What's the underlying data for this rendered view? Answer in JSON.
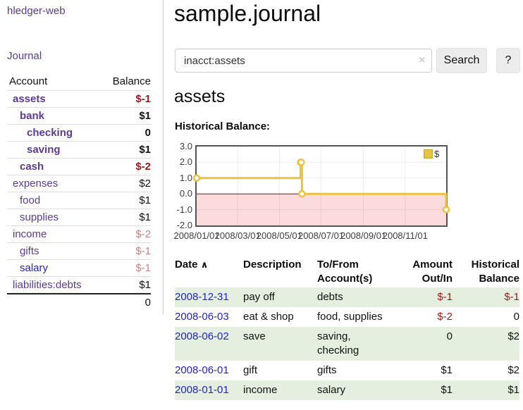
{
  "colors": {
    "link_purple": "#5c3a96",
    "link_blue": "#2222cf",
    "negative_red": "#9b1c1c",
    "muted_rose": "#c9827f",
    "row_green": "#e4efdf",
    "chart_gold": "#e9c340",
    "chart_negative_fill": "#fbdbdb",
    "chart_zero_line": "#8f0e0e",
    "chart_border": "#545454"
  },
  "sidebar": {
    "brand": "hledger-web",
    "journal_link": "Journal",
    "accounts_table": {
      "account_header": "Account",
      "balance_header": "Balance",
      "rows": [
        {
          "account": "assets",
          "balance": "$-1",
          "depth": 1,
          "bold": true,
          "balance_class": "neg"
        },
        {
          "account": "bank",
          "balance": "$1",
          "depth": 2,
          "bold": true,
          "balance_class": ""
        },
        {
          "account": "checking",
          "balance": "0",
          "depth": 3,
          "bold": true,
          "balance_class": ""
        },
        {
          "account": "saving",
          "balance": "$1",
          "depth": 3,
          "bold": true,
          "balance_class": ""
        },
        {
          "account": "cash",
          "balance": "$-2",
          "depth": 2,
          "bold": true,
          "balance_class": "neg"
        },
        {
          "account": "expenses",
          "balance": "$2",
          "depth": 1,
          "bold": false,
          "balance_class": ""
        },
        {
          "account": "food",
          "balance": "$1",
          "depth": 2,
          "bold": false,
          "balance_class": ""
        },
        {
          "account": "supplies",
          "balance": "$1",
          "depth": 2,
          "bold": false,
          "balance_class": ""
        },
        {
          "account": "income",
          "balance": "$-2",
          "depth": 1,
          "bold": false,
          "balance_class": "rose"
        },
        {
          "account": "gifts",
          "balance": "$-1",
          "depth": 2,
          "bold": false,
          "balance_class": "rose"
        },
        {
          "account": "salary",
          "balance": "$-1",
          "depth": 2,
          "bold": false,
          "balance_class": "rose",
          "unvisited": true
        },
        {
          "account": "liabilities:debts",
          "balance": "$1",
          "depth": 1,
          "bold": false,
          "balance_class": ""
        }
      ],
      "total": "0"
    }
  },
  "main": {
    "title": "sample.journal",
    "search": {
      "value": "inacct:assets",
      "clear_icon": "×",
      "button_label": "Search",
      "help_label": "?"
    },
    "section_title": "assets",
    "chart_label": "Historical Balance:"
  },
  "chart_data": {
    "type": "line",
    "step": true,
    "title": "Historical Balance",
    "x_type": "date",
    "xrange": [
      "2008-01-01",
      "2008-12-31"
    ],
    "ylim": [
      -2,
      3
    ],
    "yticks": [
      3,
      2,
      1,
      0,
      -1,
      -2
    ],
    "xtick_labels": [
      "2008/01/01",
      "2008/03/01",
      "2008/05/01",
      "2008/07/01",
      "2008/09/01",
      "2008/11/01"
    ],
    "series": [
      {
        "name": "$",
        "color": "#e9c340",
        "points": [
          [
            "2008-01-01",
            1
          ],
          [
            "2008-06-01",
            2
          ],
          [
            "2008-06-02",
            2
          ],
          [
            "2008-06-03",
            0
          ],
          [
            "2008-12-31",
            -1
          ]
        ]
      }
    ],
    "legend_position": "top-right",
    "grid": true,
    "negative_region_color": "#fbdbdb",
    "zero_line_color": "#8f0e0e"
  },
  "register": {
    "sort_indicator": "∧",
    "headers": [
      "Date",
      "Description",
      "To/From Account(s)",
      "Amount Out/In",
      "Historical Balance"
    ],
    "rows": [
      {
        "date": "2008-12-31",
        "description": "pay off",
        "accounts": "debts",
        "amount": "$-1",
        "amount_negative": true,
        "balance": "$-1",
        "balance_negative": true,
        "shaded": true
      },
      {
        "date": "2008-06-03",
        "description": "eat & shop",
        "accounts": "food, supplies",
        "amount": "$-2",
        "amount_negative": true,
        "balance": "0",
        "balance_negative": false,
        "shaded": false
      },
      {
        "date": "2008-06-02",
        "description": "save",
        "accounts": "saving,\nchecking",
        "amount": "0",
        "amount_negative": false,
        "balance": "$2",
        "balance_negative": false,
        "shaded": true
      },
      {
        "date": "2008-06-01",
        "description": "gift",
        "accounts": "gifts",
        "amount": "$1",
        "amount_negative": false,
        "balance": "$2",
        "balance_negative": false,
        "shaded": false
      },
      {
        "date": "2008-01-01",
        "description": "income",
        "accounts": "salary",
        "amount": "$1",
        "amount_negative": false,
        "balance": "$1",
        "balance_negative": false,
        "shaded": true
      }
    ]
  }
}
